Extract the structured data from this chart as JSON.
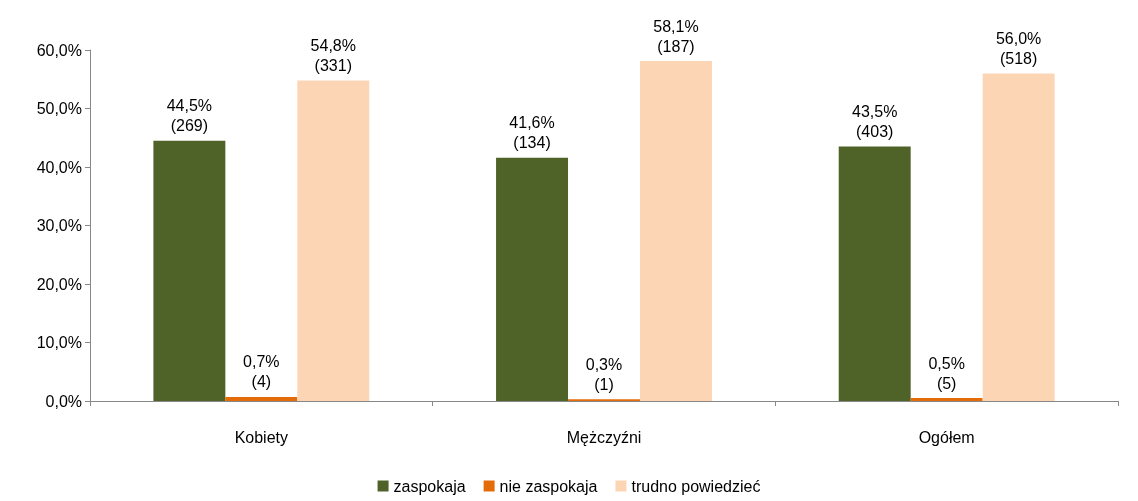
{
  "chart_data": {
    "type": "bar",
    "categories": [
      "Kobiety",
      "Mężczyźni",
      "Ogółem"
    ],
    "series": [
      {
        "name": "zaspokaja",
        "color": "#4f6228",
        "values": [
          44.5,
          41.6,
          43.5
        ],
        "value_labels": [
          "44,5%\n(269)",
          "41,6%\n(134)",
          "43,5%\n(403)"
        ]
      },
      {
        "name": "nie zaspokaja",
        "color": "#e36c09",
        "values": [
          0.7,
          0.3,
          0.5
        ],
        "value_labels": [
          "0,7%\n(4)",
          "0,3%\n(1)",
          "0,5%\n(5)"
        ]
      },
      {
        "name": "trudno powiedzieć",
        "color": "#fcd5b5",
        "values": [
          54.8,
          58.1,
          56.0
        ],
        "value_labels": [
          "54,8%\n(331)",
          "58,1%\n(187)",
          "56,0%\n(518)"
        ]
      }
    ],
    "ylim": [
      0,
      60
    ],
    "yticks": [
      {
        "value": 0,
        "label": "0,0%"
      },
      {
        "value": 10,
        "label": "10,0%"
      },
      {
        "value": 20,
        "label": "20,0%"
      },
      {
        "value": 30,
        "label": "30,0%"
      },
      {
        "value": 40,
        "label": "40,0%"
      },
      {
        "value": 50,
        "label": "50,0%"
      },
      {
        "value": 60,
        "label": "60,0%"
      }
    ],
    "grid": false,
    "legend": "bottom"
  }
}
